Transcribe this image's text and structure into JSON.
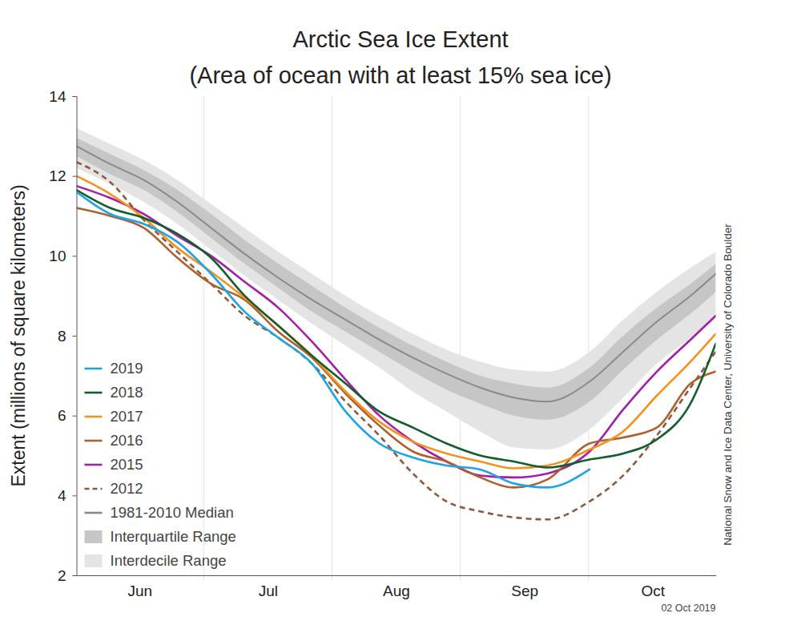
{
  "chart_data": {
    "type": "line",
    "title": "Arctic Sea Ice Extent",
    "subtitle": "(Area of ocean with at least 15% sea ice)",
    "y_label": "Extent (millions of square kilometers)",
    "annotations": [
      "National Snow and Ice Data Center, University of Colorado Boulder",
      "02 Oct 2019"
    ],
    "x": [
      152,
      160,
      168,
      176,
      184,
      192,
      200,
      208,
      216,
      224,
      232,
      240,
      248,
      256,
      264,
      274,
      282,
      290,
      298,
      304
    ],
    "xlim": [
      152,
      304
    ],
    "xticks": [
      {
        "value": 167,
        "label": "Jun"
      },
      {
        "value": 197.5,
        "label": "Jul"
      },
      {
        "value": 228,
        "label": "Aug"
      },
      {
        "value": 258.5,
        "label": "Sep"
      },
      {
        "value": 289,
        "label": "Oct"
      }
    ],
    "ylim": [
      2,
      14
    ],
    "yticks": [
      2,
      4,
      6,
      8,
      10,
      12,
      14
    ],
    "grid": true,
    "legend": "lower left",
    "series": [
      {
        "name": "2019",
        "color": "#1ea4e6",
        "values": [
          11.6,
          11.05,
          10.8,
          10.35,
          9.55,
          8.6,
          7.95,
          7.3,
          6.1,
          5.3,
          4.95,
          4.75,
          4.65,
          4.3,
          4.2,
          4.65,
          null,
          null,
          null,
          null
        ]
      },
      {
        "name": "2018",
        "color": "#125e2c",
        "values": [
          11.65,
          11.2,
          10.95,
          10.55,
          9.95,
          9.0,
          8.25,
          7.5,
          6.8,
          6.1,
          5.7,
          5.3,
          5.0,
          4.85,
          4.7,
          4.9,
          5.05,
          5.4,
          6.3,
          7.8
        ]
      },
      {
        "name": "2017",
        "color": "#f5921e",
        "values": [
          12.0,
          11.55,
          10.95,
          10.2,
          9.6,
          8.95,
          8.25,
          7.5,
          6.6,
          5.85,
          5.35,
          5.05,
          4.85,
          4.68,
          4.75,
          5.15,
          5.6,
          6.5,
          7.35,
          8.05
        ]
      },
      {
        "name": "2016",
        "color": "#b0602c",
        "values": [
          11.2,
          11.0,
          10.7,
          9.95,
          9.3,
          8.9,
          8.1,
          7.45,
          6.55,
          5.75,
          5.1,
          4.85,
          4.45,
          4.2,
          4.4,
          5.3,
          5.45,
          5.7,
          6.8,
          7.1
        ]
      },
      {
        "name": "2015",
        "color": "#a31fa6",
        "values": [
          11.75,
          11.45,
          11.05,
          10.5,
          10.0,
          9.35,
          8.7,
          7.85,
          6.9,
          6.0,
          5.35,
          4.85,
          4.5,
          4.45,
          4.55,
          5.1,
          6.15,
          7.1,
          7.9,
          8.5
        ]
      },
      {
        "name": "2012",
        "color": "#8c5a3e",
        "line_style": "dashed",
        "values": [
          12.35,
          11.85,
          10.9,
          10.1,
          9.3,
          8.5,
          7.95,
          7.3,
          6.35,
          5.5,
          4.55,
          3.85,
          3.6,
          3.45,
          3.4,
          3.85,
          4.5,
          5.5,
          6.7,
          7.6
        ]
      },
      {
        "name": "1981-2010 Median",
        "color": "#8a8a8a",
        "values": [
          12.75,
          12.3,
          11.9,
          11.35,
          10.7,
          10.05,
          9.45,
          8.9,
          8.4,
          7.9,
          7.45,
          7.05,
          6.7,
          6.45,
          6.35,
          6.85,
          7.6,
          8.35,
          9.0,
          9.55
        ]
      },
      {
        "name": "Interquartile Range",
        "type": "area",
        "color": "#c6c6c6",
        "low": [
          12.5,
          12.05,
          11.65,
          11.1,
          10.45,
          9.8,
          9.2,
          8.6,
          8.1,
          7.6,
          7.1,
          6.65,
          6.3,
          6.0,
          5.9,
          6.35,
          7.15,
          7.9,
          8.55,
          9.1
        ],
        "high": [
          12.95,
          12.55,
          12.15,
          11.65,
          11.05,
          10.4,
          9.8,
          9.25,
          8.7,
          8.2,
          7.75,
          7.35,
          7.0,
          6.8,
          6.7,
          7.2,
          8.0,
          8.7,
          9.3,
          9.8
        ]
      },
      {
        "name": "Interdecile Range",
        "type": "area",
        "color": "#e4e4e4",
        "low": [
          12.2,
          11.8,
          11.35,
          10.8,
          10.15,
          9.5,
          8.9,
          8.3,
          7.75,
          7.2,
          6.6,
          6.1,
          5.6,
          5.2,
          5.15,
          5.65,
          6.45,
          7.3,
          7.95,
          8.5
        ],
        "high": [
          13.2,
          12.8,
          12.4,
          11.9,
          11.3,
          10.7,
          10.1,
          9.55,
          9.0,
          8.5,
          8.05,
          7.65,
          7.35,
          7.15,
          7.1,
          7.6,
          8.4,
          9.1,
          9.7,
          10.1
        ]
      }
    ]
  }
}
